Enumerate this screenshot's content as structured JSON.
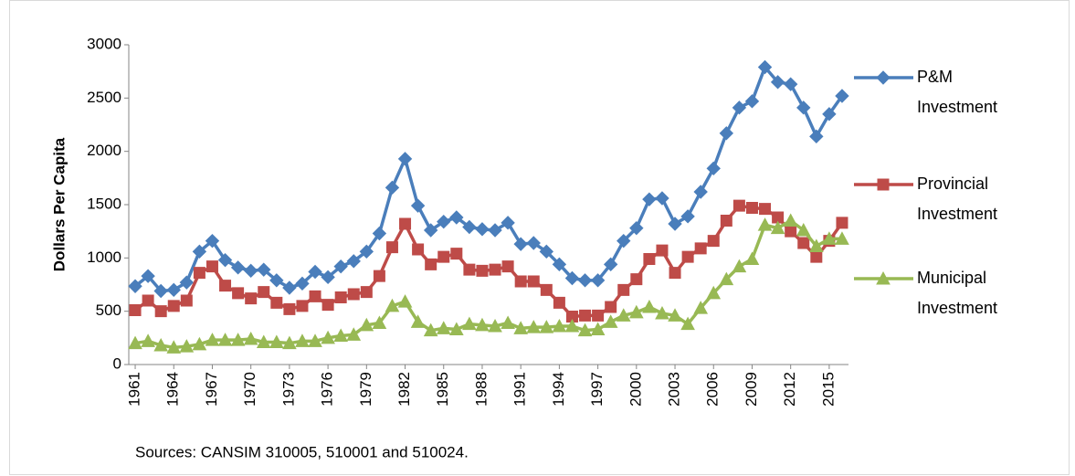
{
  "chart_data": {
    "type": "line",
    "y_label": "Dollars Per Capita",
    "note": "Sources: CANSIM 310005, 510001 and 510024.",
    "x": [
      1961,
      1962,
      1963,
      1964,
      1965,
      1966,
      1967,
      1968,
      1969,
      1970,
      1971,
      1972,
      1973,
      1974,
      1975,
      1976,
      1977,
      1978,
      1979,
      1980,
      1981,
      1982,
      1983,
      1984,
      1985,
      1986,
      1987,
      1988,
      1989,
      1990,
      1991,
      1992,
      1993,
      1994,
      1995,
      1996,
      1997,
      1998,
      1999,
      2000,
      2001,
      2002,
      2003,
      2004,
      2005,
      2006,
      2007,
      2008,
      2009,
      2010,
      2011,
      2012,
      2013,
      2014,
      2015,
      2016
    ],
    "xlim": [
      1960.5,
      2016.5
    ],
    "xticks": [
      1961,
      1964,
      1967,
      1970,
      1973,
      1976,
      1979,
      1982,
      1985,
      1988,
      1991,
      1994,
      1997,
      2000,
      2003,
      2006,
      2009,
      2012,
      2015
    ],
    "ylim": [
      0,
      3000
    ],
    "yticks": [
      0,
      500,
      1000,
      1500,
      2000,
      2500,
      3000
    ],
    "grid": false,
    "legend": "right",
    "series": [
      {
        "name": "P&M Investment",
        "color": "#4a7ebb",
        "marker": "diamond",
        "values": [
          735,
          830,
          690,
          700,
          770,
          1060,
          1160,
          980,
          910,
          880,
          890,
          790,
          720,
          760,
          870,
          820,
          920,
          970,
          1060,
          1230,
          1660,
          1930,
          1490,
          1260,
          1340,
          1380,
          1290,
          1270,
          1260,
          1330,
          1130,
          1140,
          1060,
          940,
          810,
          790,
          790,
          940,
          1160,
          1280,
          1550,
          1560,
          1320,
          1390,
          1620,
          1840,
          2170,
          2410,
          2470,
          2790,
          2650,
          2630,
          2410,
          2140,
          2350,
          2520
        ]
      },
      {
        "name": "Provincial Investment",
        "color": "#be4b48",
        "marker": "square",
        "values": [
          510,
          600,
          500,
          550,
          600,
          860,
          920,
          740,
          670,
          620,
          680,
          580,
          520,
          550,
          640,
          560,
          630,
          660,
          680,
          830,
          1100,
          1320,
          1080,
          940,
          1010,
          1040,
          890,
          880,
          890,
          920,
          780,
          780,
          700,
          580,
          450,
          460,
          460,
          540,
          700,
          800,
          990,
          1070,
          860,
          1010,
          1090,
          1160,
          1350,
          1490,
          1470,
          1460,
          1380,
          1250,
          1140,
          1010,
          1160,
          1330
        ]
      },
      {
        "name": "Municipal Investment",
        "color": "#98b954",
        "marker": "triangle",
        "values": [
          200,
          220,
          180,
          160,
          170,
          190,
          230,
          230,
          230,
          240,
          210,
          210,
          200,
          220,
          220,
          250,
          270,
          280,
          370,
          390,
          550,
          590,
          400,
          320,
          340,
          330,
          380,
          370,
          360,
          390,
          340,
          350,
          350,
          360,
          360,
          320,
          330,
          400,
          460,
          490,
          540,
          480,
          460,
          380,
          530,
          670,
          800,
          920,
          990,
          1310,
          1280,
          1350,
          1260,
          1110,
          1180,
          1180
        ]
      }
    ]
  }
}
